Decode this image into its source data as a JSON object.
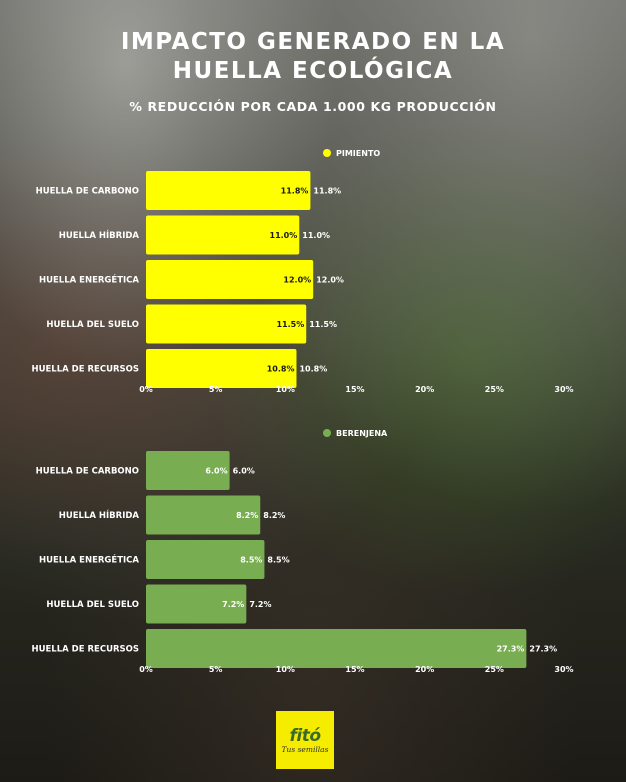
{
  "header": {
    "title_line1": "IMPACTO GENERADO EN LA",
    "title_line2": "HUELLA ECOLÓGICA",
    "subtitle": "% REDUCCIÓN POR CADA 1.000 KG PRODUCCIÓN"
  },
  "colors": {
    "pimiento": "#ffff00",
    "berenjena": "#78ad51"
  },
  "chart_data": [
    {
      "type": "bar",
      "orientation": "horizontal",
      "legend": "PIMIENTO",
      "categories": [
        "HUELLA DE CARBONO",
        "HUELLA HÍBRIDA",
        "HUELLA ENERGÉTICA",
        "HUELLA DEL SUELO",
        "HUELLA DE RECURSOS"
      ],
      "series": [
        {
          "name": "PIMIENTO",
          "values": [
            11.8,
            11.0,
            12.0,
            11.5,
            10.8
          ],
          "color": "#ffff00"
        }
      ],
      "data_labels": [
        "11.8%",
        "11.0%",
        "12.0%",
        "11.5%",
        "10.8%"
      ],
      "xlim": [
        0,
        30
      ],
      "x_ticks": [
        "0%",
        "5%",
        "10%",
        "15%",
        "20%",
        "25%",
        "30%"
      ],
      "grid": false,
      "legend_position": "top-center"
    },
    {
      "type": "bar",
      "orientation": "horizontal",
      "legend": "BERENJENA",
      "categories": [
        "HUELLA DE CARBONO",
        "HUELLA HÍBRIDA",
        "HUELLA ENERGÉTICA",
        "HUELLA DEL SUELO",
        "HUELLA DE RECURSOS"
      ],
      "series": [
        {
          "name": "BERENJENA",
          "values": [
            6.0,
            8.2,
            8.5,
            7.2,
            27.3
          ],
          "color": "#78ad51"
        }
      ],
      "data_labels": [
        "6.0%",
        "8.2%",
        "8.5%",
        "7.2%",
        "27.3%"
      ],
      "xlim": [
        0,
        30
      ],
      "x_ticks": [
        "0%",
        "5%",
        "10%",
        "15%",
        "20%",
        "25%",
        "30%"
      ],
      "grid": false,
      "legend_position": "top-center"
    }
  ],
  "logo": {
    "brand": "fitó",
    "tagline": "Tus semillas"
  }
}
